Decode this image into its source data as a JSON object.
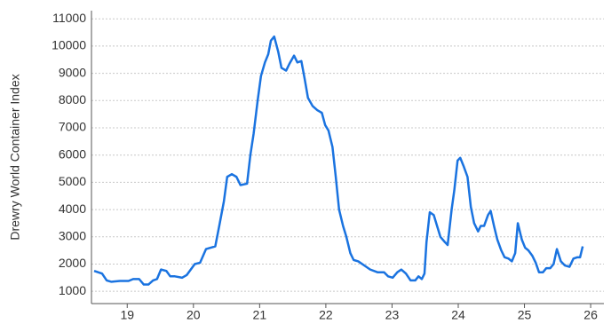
{
  "chart_data": {
    "type": "line",
    "y_label": "Drewry World Container Index",
    "x": [
      19.0,
      19.12,
      19.19,
      19.26,
      19.39,
      19.52,
      19.59,
      19.68,
      19.75,
      19.82,
      19.89,
      19.95,
      20.01,
      20.09,
      20.15,
      20.22,
      20.33,
      20.4,
      20.46,
      20.52,
      20.6,
      20.69,
      20.76,
      20.83,
      20.89,
      20.96,
      21.01,
      21.08,
      21.15,
      21.21,
      21.31,
      21.36,
      21.41,
      21.47,
      21.52,
      21.58,
      21.63,
      21.67,
      21.72,
      21.78,
      21.83,
      21.9,
      21.95,
      22.02,
      22.07,
      22.13,
      22.18,
      22.23,
      22.3,
      22.37,
      22.44,
      22.49,
      22.54,
      22.6,
      22.65,
      22.7,
      22.76,
      22.81,
      22.87,
      22.92,
      22.99,
      23.08,
      23.17,
      23.28,
      23.38,
      23.44,
      23.51,
      23.58,
      23.64,
      23.71,
      23.78,
      23.85,
      23.9,
      23.95,
      23.99,
      24.02,
      24.07,
      24.13,
      24.18,
      24.23,
      24.3,
      24.34,
      24.4,
      24.44,
      24.49,
      24.53,
      24.58,
      24.64,
      24.69,
      24.74,
      24.8,
      24.84,
      24.89,
      24.95,
      24.99,
      25.04,
      25.09,
      25.15,
      25.2,
      25.26,
      25.31,
      25.36,
      25.4,
      25.46,
      25.51,
      25.56,
      25.62,
      25.67,
      25.72,
      25.78,
      25.83,
      25.89,
      25.94,
      25.99,
      26.05,
      26.11,
      26.18,
      26.24,
      26.3,
      26.34,
      26.38
    ],
    "series": [
      {
        "name": "Drewry World Container Index",
        "color": "#1a73e0",
        "values": [
          1750,
          1650,
          1400,
          1350,
          1380,
          1380,
          1450,
          1450,
          1250,
          1250,
          1400,
          1450,
          1800,
          1750,
          1550,
          1550,
          1500,
          1600,
          1800,
          2000,
          2050,
          2550,
          2600,
          2650,
          3400,
          4300,
          5200,
          5300,
          5200,
          4900,
          4950,
          6000,
          6800,
          8000,
          8900,
          9400,
          9700,
          10200,
          10350,
          9800,
          9200,
          9100,
          9350,
          9650,
          9400,
          9450,
          8800,
          8100,
          7800,
          7650,
          7550,
          7100,
          6900,
          6300,
          5200,
          4000,
          3400,
          3000,
          2400,
          2150,
          2100,
          1950,
          1800,
          1700,
          1700,
          1550,
          1500,
          1700,
          1800,
          1650,
          1400,
          1400,
          1550,
          1450,
          1650,
          2800,
          3900,
          3800,
          3400,
          3000,
          2800,
          2700,
          4000,
          4700,
          5800,
          5900,
          5600,
          5200,
          4100,
          3500,
          3200,
          3400,
          3400,
          3800,
          3950,
          3400,
          2900,
          2500,
          2250,
          2200,
          2100,
          2400,
          3500,
          2900,
          2600,
          2500,
          2300,
          2050,
          1700,
          1700,
          1850,
          1850,
          2000,
          2550,
          2100,
          1950,
          1900,
          2200,
          2250,
          2250,
          2650
        ]
      }
    ],
    "xlim": [
      18.96,
      26.7
    ],
    "xticks": [
      {
        "value": 19.5,
        "label": "19"
      },
      {
        "value": 20.5,
        "label": "20"
      },
      {
        "value": 21.5,
        "label": "21"
      },
      {
        "value": 22.5,
        "label": "22"
      },
      {
        "value": 23.5,
        "label": "23"
      },
      {
        "value": 24.5,
        "label": "24"
      },
      {
        "value": 25.5,
        "label": "25"
      },
      {
        "value": 26.5,
        "label": "26"
      }
    ],
    "ylim": [
      550,
      11300
    ],
    "yticks": [
      1000,
      2000,
      3000,
      4000,
      5000,
      6000,
      7000,
      8000,
      9000,
      10000,
      11000
    ],
    "grid": true
  }
}
